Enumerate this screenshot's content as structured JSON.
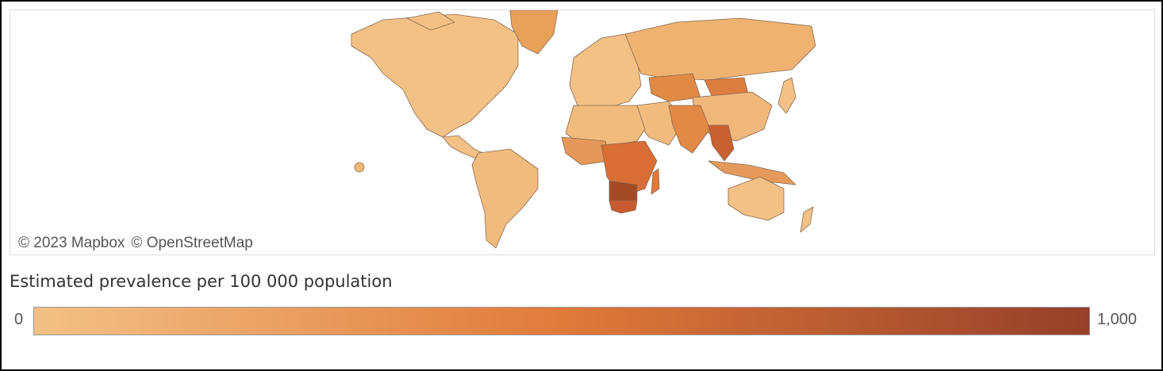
{
  "map": {
    "attribution": [
      "© 2023 Mapbox",
      "© OpenStreetMap"
    ],
    "base_color": "#f3c185",
    "border_color": "#8a6a50",
    "regions": [
      {
        "name": "Sub-Saharan Africa",
        "level": 0.55
      },
      {
        "name": "Southern Africa",
        "level": 0.85
      },
      {
        "name": "South-East Asia",
        "level": 0.6
      },
      {
        "name": "South Asia",
        "level": 0.45
      },
      {
        "name": "Russia",
        "level": 0.2
      },
      {
        "name": "Mongolia",
        "level": 0.5
      },
      {
        "name": "Kazakhstan",
        "level": 0.4
      },
      {
        "name": "Americas",
        "level": 0.05
      },
      {
        "name": "Europe",
        "level": 0.05
      },
      {
        "name": "Australia",
        "level": 0.05
      }
    ]
  },
  "legend": {
    "title": "Estimated prevalence  per 100 000 population",
    "min_label": "0",
    "max_label": "1,000",
    "gradient_colors": [
      "#f3c185",
      "#e07a3a",
      "#96402a"
    ]
  }
}
